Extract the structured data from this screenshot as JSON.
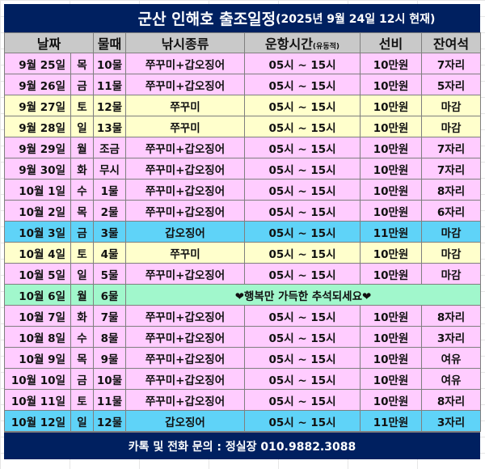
{
  "title": {
    "main": "군산 인해호 출조일정",
    "sub": "(2025년 9월 24일 12시 현재)"
  },
  "headers": {
    "date": "날짜",
    "tide": "물때",
    "species": "낚시종류",
    "time": "운항시간",
    "time_note": "(유동적)",
    "fee": "선비",
    "seats": "잔여석"
  },
  "colors": {
    "navy": "#002060",
    "header": "#c9c9c9",
    "pink": "#ffccff",
    "yellow": "#ffffcc",
    "blue": "#5fd3f8",
    "green": "#a1f7cc"
  },
  "rows": [
    {
      "date": "9월 25일",
      "day": "목",
      "tide": "10물",
      "species": "쭈꾸미+갑오징어",
      "time": "05시 ~ 15시",
      "fee": "10만원",
      "seats": "7자리",
      "color": "pink"
    },
    {
      "date": "9월 26일",
      "day": "금",
      "tide": "11물",
      "species": "쭈꾸미+갑오징어",
      "time": "05시 ~ 15시",
      "fee": "10만원",
      "seats": "5자리",
      "color": "pink"
    },
    {
      "date": "9월 27일",
      "day": "토",
      "tide": "12물",
      "species": "쭈꾸미",
      "time": "05시 ~ 15시",
      "fee": "10만원",
      "seats": "마감",
      "color": "yellow"
    },
    {
      "date": "9월 28일",
      "day": "일",
      "tide": "13물",
      "species": "쭈꾸미",
      "time": "05시 ~ 15시",
      "fee": "10만원",
      "seats": "마감",
      "color": "yellow"
    },
    {
      "date": "9월 29일",
      "day": "월",
      "tide": "조금",
      "species": "쭈꾸미+갑오징어",
      "time": "05시 ~ 15시",
      "fee": "10만원",
      "seats": "7자리",
      "color": "pink"
    },
    {
      "date": "9월 30일",
      "day": "화",
      "tide": "무시",
      "species": "쭈꾸미+갑오징어",
      "time": "05시 ~ 15시",
      "fee": "10만원",
      "seats": "7자리",
      "color": "pink"
    },
    {
      "date": "10월 1일",
      "day": "수",
      "tide": "1물",
      "species": "쭈꾸미+갑오징어",
      "time": "05시 ~ 15시",
      "fee": "10만원",
      "seats": "8자리",
      "color": "pink"
    },
    {
      "date": "10월 2일",
      "day": "목",
      "tide": "2물",
      "species": "쭈꾸미+갑오징어",
      "time": "05시 ~ 15시",
      "fee": "10만원",
      "seats": "6자리",
      "color": "pink"
    },
    {
      "date": "10월 3일",
      "day": "금",
      "tide": "3물",
      "species": "갑오징어",
      "time": "05시 ~ 15시",
      "fee": "11만원",
      "seats": "마감",
      "color": "blue"
    },
    {
      "date": "10월 4일",
      "day": "토",
      "tide": "4물",
      "species": "쭈꾸미",
      "time": "05시 ~ 15시",
      "fee": "10만원",
      "seats": "마감",
      "color": "yellow"
    },
    {
      "date": "10월 5일",
      "day": "일",
      "tide": "5물",
      "species": "쭈꾸미+갑오징어",
      "time": "05시 ~ 15시",
      "fee": "10만원",
      "seats": "마감",
      "color": "pink"
    },
    {
      "date": "10월 6일",
      "day": "월",
      "tide": "6물",
      "note": "❤행복만 가득한 추석되세요❤",
      "color": "green"
    },
    {
      "date": "10월 7일",
      "day": "화",
      "tide": "7물",
      "species": "쭈꾸미+갑오징어",
      "time": "05시 ~ 15시",
      "fee": "10만원",
      "seats": "8자리",
      "color": "pink"
    },
    {
      "date": "10월 8일",
      "day": "수",
      "tide": "8물",
      "species": "쭈꾸미+갑오징어",
      "time": "05시 ~ 15시",
      "fee": "10만원",
      "seats": "3자리",
      "color": "pink"
    },
    {
      "date": "10월 9일",
      "day": "목",
      "tide": "9물",
      "species": "쭈꾸미+갑오징어",
      "time": "05시 ~ 15시",
      "fee": "10만원",
      "seats": "여유",
      "color": "pink"
    },
    {
      "date": "10월 10일",
      "day": "금",
      "tide": "10물",
      "species": "쭈꾸미+갑오징어",
      "time": "05시 ~ 15시",
      "fee": "10만원",
      "seats": "여유",
      "color": "pink"
    },
    {
      "date": "10월 11일",
      "day": "토",
      "tide": "11물",
      "species": "쭈꾸미+갑오징어",
      "time": "05시 ~ 15시",
      "fee": "10만원",
      "seats": "8자리",
      "color": "pink"
    },
    {
      "date": "10월 12일",
      "day": "일",
      "tide": "12물",
      "species": "갑오징어",
      "time": "05시 ~ 15시",
      "fee": "11만원",
      "seats": "3자리",
      "color": "blue"
    }
  ],
  "footer": "카톡 및 전화 문의 : 정실장 010.9882.3088"
}
